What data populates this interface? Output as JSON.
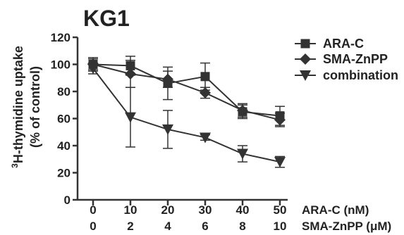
{
  "chart_data": {
    "type": "line",
    "title": "KG1",
    "ylabel_line1_sup": "3",
    "ylabel_line1": "H-thymidine uptake",
    "ylabel_line2": "(% of control)",
    "ylim": [
      0,
      120
    ],
    "yticks": [
      0,
      20,
      40,
      60,
      80,
      100,
      120
    ],
    "x_axes": [
      {
        "label": "ARA-C (nM)",
        "ticks": [
          "0",
          "10",
          "20",
          "30",
          "40",
          "50"
        ]
      },
      {
        "label": "SMA-ZnPP (μM)",
        "ticks": [
          "0",
          "2",
          "4",
          "6",
          "8",
          "10"
        ]
      }
    ],
    "legend_position": "top-right",
    "series": [
      {
        "name": "ARA-C",
        "marker": "square",
        "values": [
          100,
          99,
          86,
          91,
          65,
          62
        ],
        "err": [
          5,
          7,
          12,
          10,
          5,
          7
        ]
      },
      {
        "name": "SMA-ZnPP",
        "marker": "diamond",
        "values": [
          100,
          93,
          89,
          79,
          66,
          59
        ],
        "err": [
          4,
          10,
          6,
          4,
          5,
          5
        ]
      },
      {
        "name": "combination",
        "marker": "triangle-down",
        "values": [
          97,
          61,
          52,
          46,
          34,
          28
        ],
        "err": [
          4,
          22,
          14,
          2,
          6,
          4
        ]
      }
    ]
  }
}
